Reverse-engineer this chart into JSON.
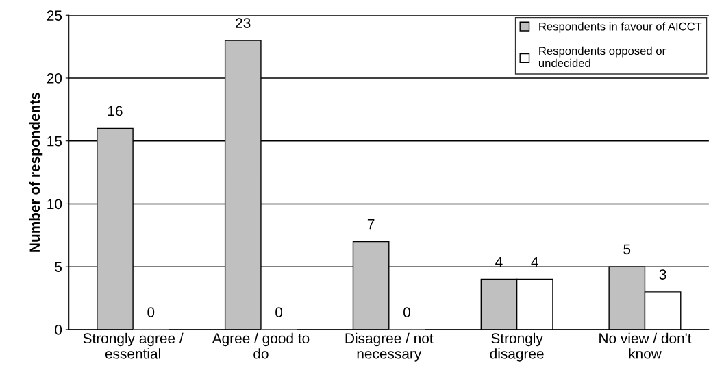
{
  "chart_data": {
    "type": "bar",
    "ylabel": "Number of respondents",
    "categories": [
      "Strongly agree /\nessential",
      "Agree / good to\ndo",
      "Disagree / not\nnecessary",
      "Strongly\ndisagree",
      "No view / don't\nknow"
    ],
    "series": [
      {
        "name": "Respondents in favour of AICCT",
        "color": "#c0c0c0",
        "values": [
          16,
          23,
          7,
          4,
          5
        ]
      },
      {
        "name": "Respondents opposed or\nundecided",
        "color": "#ffffff",
        "values": [
          0,
          0,
          0,
          4,
          3
        ]
      }
    ],
    "ylim": [
      0,
      25
    ],
    "yticks": [
      0,
      5,
      10,
      15,
      20,
      25
    ],
    "grid": "y",
    "legend": "top right",
    "data_labels": true
  }
}
